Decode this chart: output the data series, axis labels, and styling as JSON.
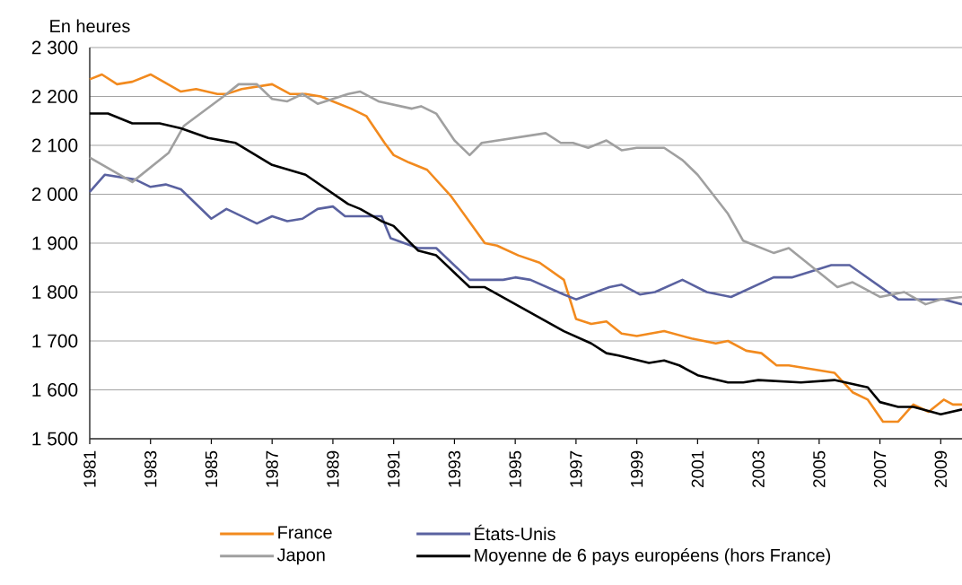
{
  "chart_data": {
    "type": "line",
    "ylabel": "En heures",
    "xlim": [
      1981,
      2009.7
    ],
    "xticks": [
      1981,
      1983,
      1985,
      1987,
      1989,
      1991,
      1993,
      1995,
      1997,
      1999,
      2001,
      2003,
      2005,
      2007,
      2009
    ],
    "ylim": [
      1500,
      2300
    ],
    "yticks": [
      {
        "value": 1500,
        "label": "1 500"
      },
      {
        "value": 1600,
        "label": "1 600"
      },
      {
        "value": 1700,
        "label": "1 700"
      },
      {
        "value": 1800,
        "label": "1 800"
      },
      {
        "value": 1900,
        "label": "1 900"
      },
      {
        "value": 2000,
        "label": "2 000"
      },
      {
        "value": 2100,
        "label": "2 100"
      },
      {
        "value": 2200,
        "label": "2 200"
      },
      {
        "value": 2300,
        "label": "2 300"
      }
    ],
    "grid": "y",
    "legend": "bottom",
    "marker": "none",
    "line_style": "solid",
    "series": [
      {
        "name": "France",
        "color": "#f28a1e",
        "x": [
          1981.0,
          1981.4,
          1981.9,
          1982.4,
          1983.0,
          1984.0,
          1984.5,
          1985.2,
          1985.5,
          1986.0,
          1987.0,
          1987.6,
          1988.1,
          1988.6,
          1989.0,
          1989.6,
          1990.1,
          1990.7,
          1991.0,
          1991.5,
          1992.1,
          1992.9,
          1994.0,
          1994.4,
          1995.1,
          1995.8,
          1996.6,
          1997.0,
          1997.5,
          1998.0,
          1998.5,
          1999.0,
          1999.9,
          2000.8,
          2001.6,
          2002.0,
          2002.6,
          2003.1,
          2003.6,
          2004.0,
          2005.0,
          2005.5,
          2006.1,
          2006.6,
          2007.1,
          2007.6,
          2008.1,
          2008.6,
          2009.1,
          2009.4,
          2009.7
        ],
        "values": [
          2235,
          2245,
          2225,
          2230,
          2245,
          2210,
          2215,
          2205,
          2205,
          2215,
          2225,
          2205,
          2205,
          2200,
          2190,
          2175,
          2160,
          2105,
          2080,
          2065,
          2050,
          1995,
          1900,
          1895,
          1875,
          1860,
          1825,
          1745,
          1735,
          1740,
          1715,
          1710,
          1720,
          1705,
          1695,
          1700,
          1680,
          1675,
          1650,
          1650,
          1640,
          1635,
          1595,
          1580,
          1535,
          1535,
          1570,
          1555,
          1580,
          1570,
          1570
        ]
      },
      {
        "name": "États-Unis",
        "color": "#5a62a0",
        "x": [
          1981.0,
          1981.5,
          1982.5,
          1983.0,
          1983.5,
          1984.0,
          1985.0,
          1985.5,
          1986.5,
          1987.0,
          1987.5,
          1988.0,
          1988.5,
          1989.0,
          1989.4,
          1990.6,
          1990.9,
          1991.8,
          1992.4,
          1993.5,
          1993.9,
          1994.6,
          1995.0,
          1995.5,
          1996.6,
          1997.0,
          1998.1,
          1998.5,
          1999.1,
          1999.6,
          2000.5,
          2001.3,
          2002.1,
          2003.5,
          2004.1,
          2005.4,
          2006.0,
          2007.6,
          2009.1,
          2009.7
        ],
        "values": [
          2005,
          2040,
          2030,
          2015,
          2020,
          2010,
          1950,
          1970,
          1940,
          1955,
          1945,
          1950,
          1970,
          1975,
          1955,
          1955,
          1910,
          1890,
          1890,
          1825,
          1825,
          1825,
          1830,
          1825,
          1795,
          1785,
          1810,
          1815,
          1795,
          1800,
          1825,
          1800,
          1790,
          1830,
          1830,
          1855,
          1855,
          1785,
          1785,
          1775
        ]
      },
      {
        "name": "Japon",
        "color": "#a0a0a0",
        "x": [
          1981.0,
          1982.4,
          1983.6,
          1984.1,
          1985.4,
          1985.9,
          1986.5,
          1987.0,
          1987.5,
          1988.0,
          1988.5,
          1989.5,
          1989.9,
          1990.5,
          1991.6,
          1991.9,
          1992.4,
          1993.0,
          1993.5,
          1993.9,
          1996.0,
          1996.5,
          1996.9,
          1997.4,
          1998.0,
          1998.5,
          1999.0,
          1999.9,
          2000.5,
          2001.0,
          2002.0,
          2002.5,
          2003.5,
          2004.0,
          2005.6,
          2006.1,
          2007.0,
          2007.8,
          2008.5,
          2009.0,
          2009.7
        ],
        "values": [
          2075,
          2025,
          2085,
          2140,
          2200,
          2225,
          2225,
          2195,
          2190,
          2205,
          2185,
          2205,
          2210,
          2190,
          2175,
          2180,
          2165,
          2110,
          2080,
          2105,
          2125,
          2105,
          2105,
          2095,
          2110,
          2090,
          2095,
          2095,
          2070,
          2040,
          1960,
          1905,
          1880,
          1890,
          1810,
          1820,
          1790,
          1800,
          1775,
          1785,
          1790
        ]
      },
      {
        "name": "Moyenne de 6 pays européens (hors France)",
        "color": "#000000",
        "x": [
          1981.0,
          1981.6,
          1982.4,
          1983.3,
          1984.0,
          1984.9,
          1985.8,
          1987.0,
          1988.1,
          1989.5,
          1989.9,
          1990.6,
          1991.0,
          1991.8,
          1992.4,
          1993.5,
          1994.0,
          1996.6,
          1997.5,
          1998.0,
          1998.4,
          1999.4,
          1999.9,
          2000.4,
          2001.0,
          2002.0,
          2002.5,
          2003.0,
          2004.4,
          2005.5,
          2006.6,
          2007.0,
          2007.6,
          2008.1,
          2009.0,
          2009.7
        ],
        "values": [
          2165,
          2165,
          2145,
          2145,
          2135,
          2115,
          2105,
          2060,
          2040,
          1980,
          1970,
          1945,
          1935,
          1885,
          1875,
          1810,
          1810,
          1720,
          1695,
          1675,
          1670,
          1655,
          1660,
          1650,
          1630,
          1615,
          1615,
          1620,
          1615,
          1620,
          1605,
          1575,
          1565,
          1565,
          1550,
          1560
        ]
      }
    ]
  }
}
